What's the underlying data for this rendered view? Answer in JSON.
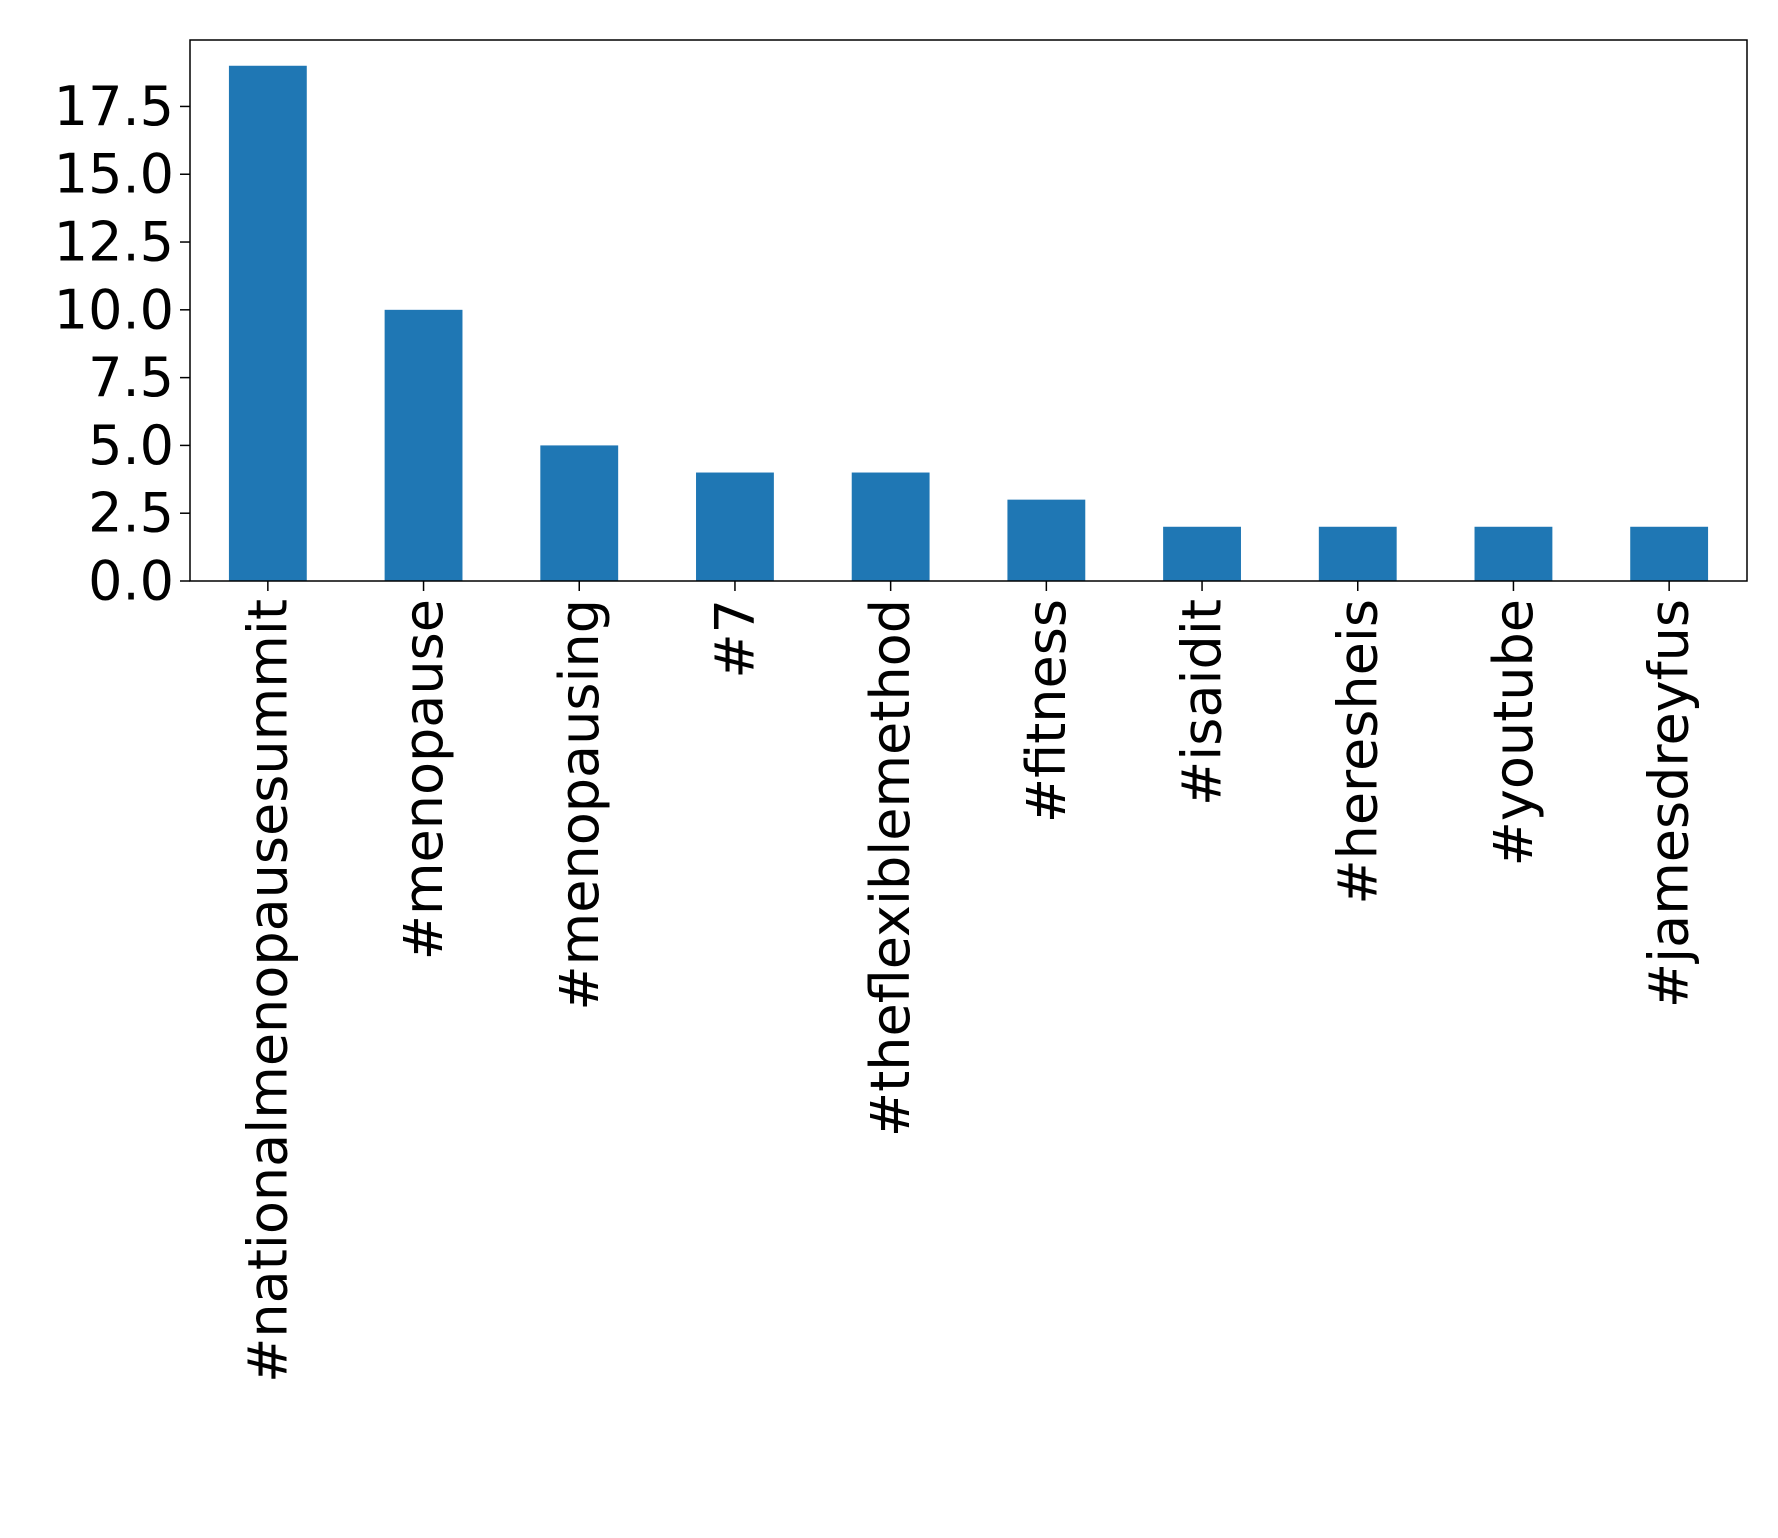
{
  "chart_data": {
    "type": "bar",
    "title": "",
    "xlabel": "",
    "ylabel": "",
    "categories": [
      "#nationalmenopausesummit",
      "#menopause",
      "#menopausing",
      "#7",
      "#theflexiblemethod",
      "#fitness",
      "#isaidit",
      "#heresheis",
      "#youtube",
      "#jamesdreyfus"
    ],
    "values": [
      19,
      10,
      5,
      4,
      4,
      3,
      2,
      2,
      2,
      2
    ],
    "ylim": [
      0,
      19.95
    ],
    "yticks": [
      0.0,
      2.5,
      5.0,
      7.5,
      10.0,
      12.5,
      15.0,
      17.5
    ],
    "ytick_labels": [
      "0.0",
      "2.5",
      "5.0",
      "7.5",
      "10.0",
      "12.5",
      "15.0",
      "17.5"
    ],
    "bar_color": "#1f77b4",
    "grid": false,
    "legend": "none"
  }
}
